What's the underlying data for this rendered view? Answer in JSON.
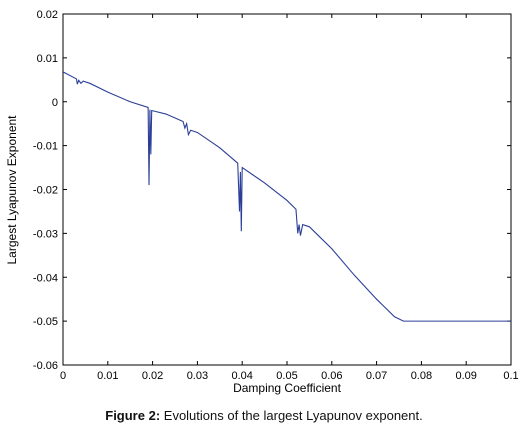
{
  "chart_data": {
    "type": "line",
    "title": "",
    "xlabel": "Damping Coefficient",
    "ylabel": "Largest Lyapunov Exponent",
    "xlim": [
      0,
      0.1
    ],
    "ylim": [
      -0.06,
      0.02
    ],
    "xticks": [
      "0",
      "0.01",
      "0.02",
      "0.03",
      "0.04",
      "0.05",
      "0.06",
      "0.07",
      "0.08",
      "0.09",
      "0.1"
    ],
    "yticks": [
      "0.02",
      "0.01",
      "0",
      "-0.01",
      "-0.02",
      "-0.03",
      "-0.04",
      "-0.05",
      "-0.06"
    ],
    "grid": false,
    "line_color": "#2b3f97",
    "series": [
      {
        "name": "",
        "points": [
          [
            0.0,
            0.0068
          ],
          [
            0.003,
            0.0052
          ],
          [
            0.0032,
            0.004
          ],
          [
            0.0035,
            0.0049
          ],
          [
            0.004,
            0.0042
          ],
          [
            0.0045,
            0.0047
          ],
          [
            0.006,
            0.0042
          ],
          [
            0.01,
            0.0022
          ],
          [
            0.015,
            0.0
          ],
          [
            0.019,
            -0.0013
          ],
          [
            0.0192,
            -0.019
          ],
          [
            0.0194,
            -0.0018
          ],
          [
            0.0196,
            -0.012
          ],
          [
            0.0198,
            -0.002
          ],
          [
            0.023,
            -0.0028
          ],
          [
            0.0268,
            -0.0045
          ],
          [
            0.0272,
            -0.006
          ],
          [
            0.0276,
            -0.005
          ],
          [
            0.028,
            -0.0075
          ],
          [
            0.0285,
            -0.0065
          ],
          [
            0.03,
            -0.007
          ],
          [
            0.035,
            -0.0105
          ],
          [
            0.039,
            -0.014
          ],
          [
            0.0394,
            -0.025
          ],
          [
            0.0396,
            -0.016
          ],
          [
            0.0398,
            -0.0295
          ],
          [
            0.04,
            -0.015
          ],
          [
            0.045,
            -0.0185
          ],
          [
            0.05,
            -0.0225
          ],
          [
            0.052,
            -0.0245
          ],
          [
            0.0524,
            -0.03
          ],
          [
            0.0527,
            -0.028
          ],
          [
            0.053,
            -0.0305
          ],
          [
            0.0535,
            -0.028
          ],
          [
            0.055,
            -0.0285
          ],
          [
            0.056,
            -0.0295
          ],
          [
            0.06,
            -0.0335
          ],
          [
            0.065,
            -0.0395
          ],
          [
            0.07,
            -0.045
          ],
          [
            0.074,
            -0.049
          ],
          [
            0.076,
            -0.05
          ],
          [
            0.08,
            -0.05
          ],
          [
            0.09,
            -0.05
          ],
          [
            0.1,
            -0.05
          ]
        ]
      }
    ]
  },
  "caption": {
    "label": "Figure 2:",
    "text": " Evolutions of the largest Lyapunov exponent."
  }
}
